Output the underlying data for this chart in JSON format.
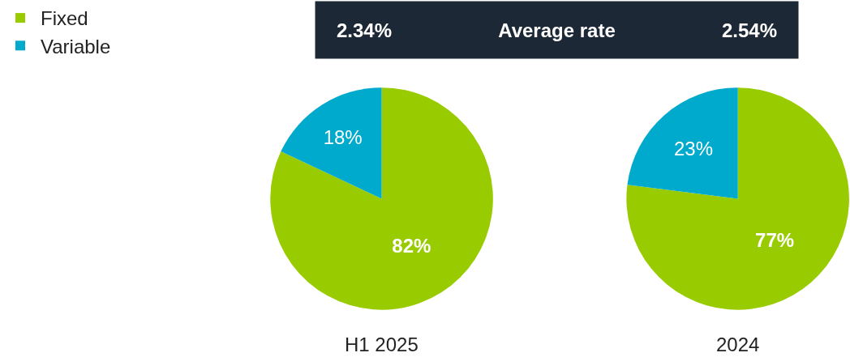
{
  "chart_data": [
    {
      "type": "pie",
      "title": "H1 2025",
      "categories": [
        "Fixed",
        "Variable"
      ],
      "values": [
        82,
        18
      ],
      "colors": [
        "#99cc00",
        "#00aacc"
      ],
      "value_labels": [
        "82%",
        "18%"
      ],
      "legend": "top left",
      "annotations": [
        "2.34%",
        "Average rate"
      ]
    },
    {
      "type": "pie",
      "title": "2024",
      "categories": [
        null,
        null
      ],
      "values": [
        77,
        23
      ],
      "colors": [
        "#99cc00",
        "#00aacc"
      ],
      "value_labels": [
        "77%",
        "23%"
      ],
      "annotations": [
        "2.54%"
      ]
    }
  ]
}
